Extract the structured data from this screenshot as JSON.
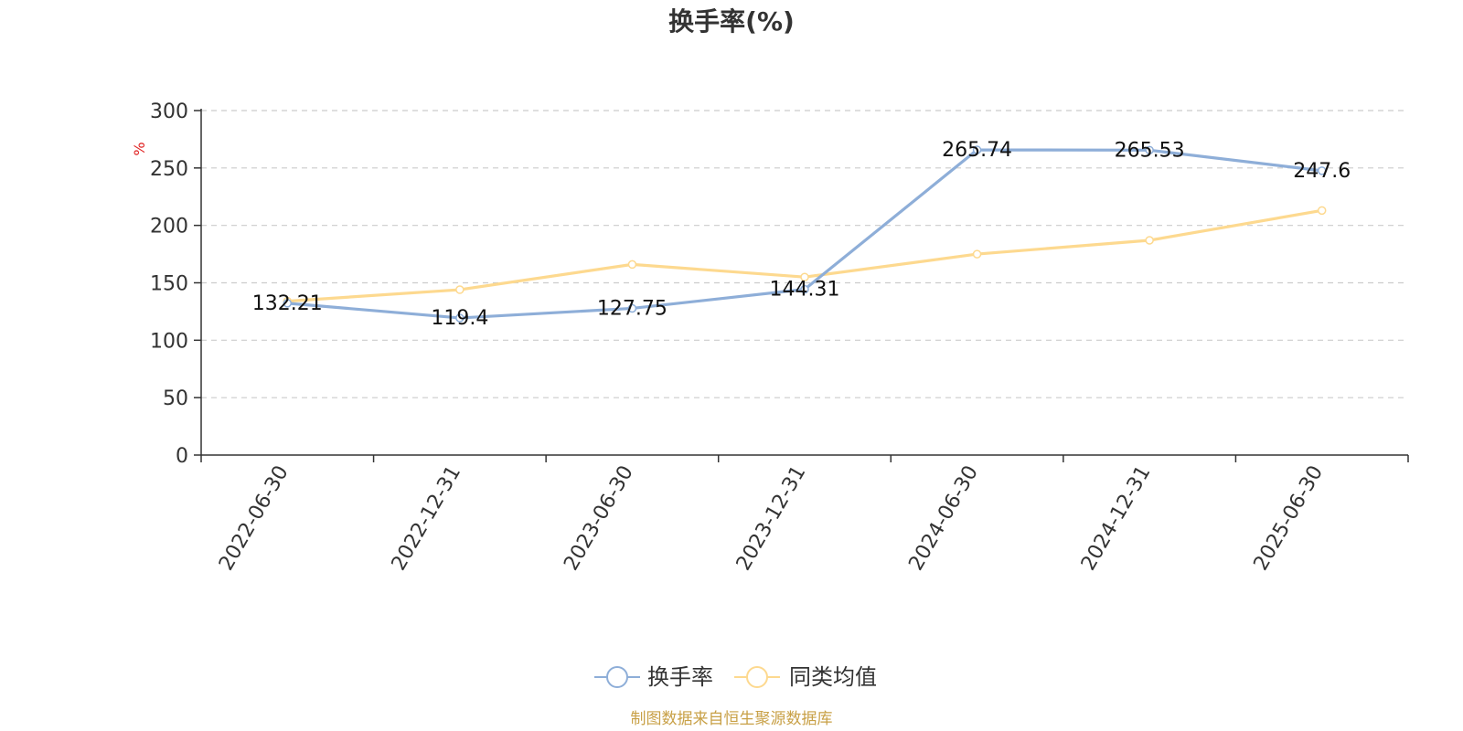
{
  "chart_data": {
    "type": "line",
    "title": "换手率(%)",
    "ylabel": "%",
    "xlabel": "",
    "ylim": [
      0,
      300
    ],
    "yticks": [
      0,
      50,
      100,
      150,
      200,
      250,
      300
    ],
    "categories": [
      "2022-06-30",
      "2022-12-31",
      "2023-06-30",
      "2023-12-31",
      "2024-06-30",
      "2024-12-31",
      "2025-06-30"
    ],
    "series": [
      {
        "name": "换手率",
        "color": "#8eaed8",
        "values": [
          132.21,
          119.4,
          127.75,
          144.31,
          265.74,
          265.53,
          247.6
        ],
        "labels": [
          "132.21",
          "119.4",
          "127.75",
          "144.31",
          "265.74",
          "265.53",
          "247.6"
        ],
        "show_labels": true
      },
      {
        "name": "同类均值",
        "color": "#fdd98f",
        "values": [
          134,
          144,
          166,
          155,
          175,
          187,
          213
        ],
        "show_labels": false
      }
    ],
    "grid": {
      "horizontal": true,
      "style": "dashed"
    },
    "legend": "bottom-center",
    "unit_color": "#e02020"
  },
  "source": {
    "text": "制图数据来自恒生聚源数据库",
    "color": "#c8a046"
  }
}
